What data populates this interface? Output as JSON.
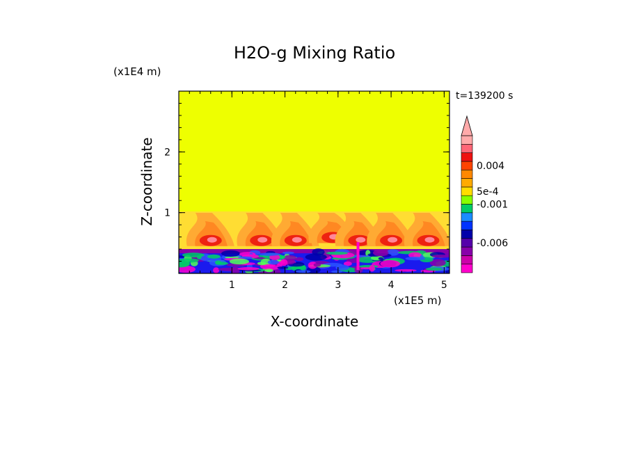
{
  "chart_data": {
    "type": "heatmap",
    "title": "H2O-g Mixing Ratio",
    "xlabel": "X-coordinate",
    "ylabel": "Z-coordinate",
    "x_unit_label": "(x1E5 m)",
    "y_unit_label": "(x1E4 m)",
    "time_label": "t=139200 s",
    "xlim": [
      0,
      5.1
    ],
    "ylim": [
      0,
      3.0
    ],
    "x_ticks": [
      {
        "value": 1,
        "label": "1"
      },
      {
        "value": 2,
        "label": "2"
      },
      {
        "value": 3,
        "label": "3"
      },
      {
        "value": 4,
        "label": "4"
      },
      {
        "value": 5,
        "label": "5"
      }
    ],
    "y_ticks": [
      {
        "value": 1,
        "label": "1"
      },
      {
        "value": 2,
        "label": "2"
      }
    ],
    "background_color": "#eeff00",
    "lower_layer": {
      "z_top": 0.4,
      "colors": [
        "#1a1aee",
        "#0000aa",
        "#2a55ff",
        "#00cc66",
        "#55ff55",
        "#ff00cc",
        "#8800aa"
      ]
    },
    "plume_region_top": 1.02,
    "plumes": [
      {
        "x": 0.6,
        "z_base": 0.45
      },
      {
        "x": 1.55,
        "z_base": 0.45
      },
      {
        "x": 2.2,
        "z_base": 0.45
      },
      {
        "x": 2.9,
        "z_base": 0.5
      },
      {
        "x": 3.4,
        "z_base": 0.45
      },
      {
        "x": 4.0,
        "z_base": 0.45
      },
      {
        "x": 4.7,
        "z_base": 0.45
      }
    ],
    "colorbar": {
      "bins": [
        "#ff00cc",
        "#cc00aa",
        "#8800aa",
        "#5500aa",
        "#0000aa",
        "#0033ff",
        "#1a8cff",
        "#00cc66",
        "#88ff00",
        "#ffdd00",
        "#ffaa00",
        "#ff8800",
        "#ff4400",
        "#ee1111",
        "#ff6677",
        "#ffaaaa"
      ],
      "arrow_color": "#ffaaaa",
      "labels": [
        {
          "text": "0.004",
          "bin": 12
        },
        {
          "text": "5e-4",
          "bin": 9
        },
        {
          "text": "-0.001",
          "bin": 7.5
        },
        {
          "text": "-0.006",
          "bin": 3
        }
      ]
    }
  }
}
